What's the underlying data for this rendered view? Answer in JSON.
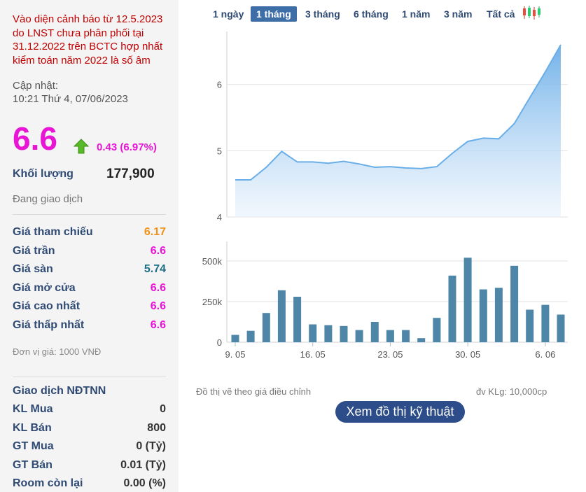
{
  "stock": {
    "warning": "Vào diện cảnh báo từ 12.5.2023 do LNST chưa phân phối tại 31.12.2022 trên BCTC hợp nhất kiểm toán năm 2022 là số âm",
    "updated_label": "Cập nhật:",
    "updated_time": "10:21 Thứ 4, 07/06/2023",
    "price": "6.6",
    "change": "0.43 (6.97%)",
    "change_direction": "up-arrow-icon",
    "volume_label": "Khối lượng",
    "volume_value": "177,900",
    "status": "Đang giao dịch"
  },
  "price_info": [
    {
      "label": "Giá tham chiếu",
      "value": "6.17",
      "color": "#f0921a"
    },
    {
      "label": "Giá trần",
      "value": "6.6",
      "color": "#e815d5"
    },
    {
      "label": "Giá sàn",
      "value": "5.74",
      "color": "#1d6f87"
    },
    {
      "label": "Giá mở cửa",
      "value": "6.6",
      "color": "#e815d5"
    },
    {
      "label": "Giá cao nhất",
      "value": "6.6",
      "color": "#e815d5"
    },
    {
      "label": "Giá thấp nhất",
      "value": "6.6",
      "color": "#e815d5"
    }
  ],
  "unit_note": "Đơn vị giá: 1000 VNĐ",
  "foreign": {
    "title": "Giao dịch NĐTNN",
    "rows": [
      {
        "label": "KL Mua",
        "value": "0"
      },
      {
        "label": "KL Bán",
        "value": "800"
      },
      {
        "label": "GT Mua",
        "value": "0 (Tỷ)"
      },
      {
        "label": "GT Bán",
        "value": "0.01 (Tỷ)"
      },
      {
        "label": "Room còn lại",
        "value": "0.00 (%)"
      }
    ]
  },
  "tabs": [
    "1 ngày",
    "1 tháng",
    "3 tháng",
    "6 tháng",
    "1 năm",
    "3 năm",
    "Tất cả"
  ],
  "active_tab": "1 tháng",
  "notes": {
    "adjusted": "Đồ thị vẽ theo giá điều chỉnh",
    "volume_unit": "đv KLg: 10,000cp"
  },
  "tech_button": "Xem đồ thị kỹ thuật",
  "chart_data": [
    {
      "type": "area",
      "y_ticks": [
        "4",
        "5",
        "6"
      ],
      "ylim": [
        4,
        6.8
      ],
      "grid": true,
      "color": "#6aaee8",
      "values": [
        4.56,
        4.56,
        4.75,
        4.99,
        4.83,
        4.83,
        4.81,
        4.84,
        4.8,
        4.75,
        4.76,
        4.74,
        4.73,
        4.76,
        4.96,
        5.14,
        5.19,
        5.18,
        5.41,
        5.8,
        6.19,
        6.6
      ]
    },
    {
      "type": "bar",
      "y_ticks": [
        "0",
        "250k",
        "500k"
      ],
      "ylim": [
        0,
        620000
      ],
      "x_ticks": [
        "9. 05",
        "16. 05",
        "23. 05",
        "30. 05",
        "6. 06"
      ],
      "color": "#4e86a7",
      "values": [
        45000,
        70000,
        180000,
        320000,
        280000,
        110000,
        105000,
        100000,
        75000,
        125000,
        75000,
        75000,
        25000,
        150000,
        410000,
        520000,
        325000,
        335000,
        470000,
        200000,
        230000,
        170000
      ]
    }
  ]
}
